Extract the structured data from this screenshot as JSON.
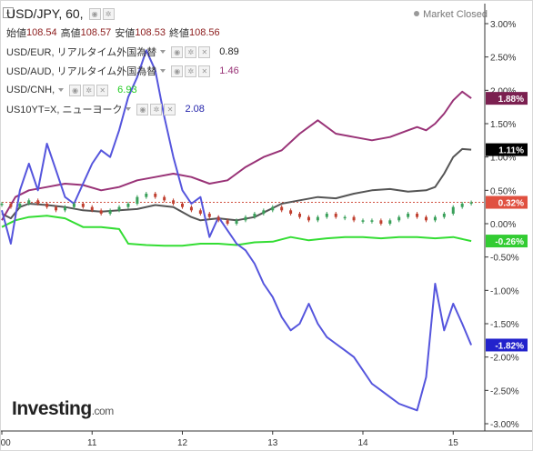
{
  "header": {
    "title": "USD/JPY, 60,",
    "market_status": "Market Closed",
    "ohlc": [
      {
        "label": "始値",
        "value": "108.54"
      },
      {
        "label": "高値",
        "value": "108.57"
      },
      {
        "label": "安値",
        "value": "108.53"
      },
      {
        "label": "終値",
        "value": "108.56"
      }
    ]
  },
  "legend": [
    {
      "label": "USD/EUR, リアルタイム外国為替",
      "value": "0.89",
      "color": "#222222"
    },
    {
      "label": "USD/AUD, リアルタイム外国為替",
      "value": "1.46",
      "color": "#993377"
    },
    {
      "label": "USD/CNH,",
      "value": "6.93",
      "color": "#33cc33"
    },
    {
      "label": "US10YT=X, ニューヨーク",
      "value": "2.08",
      "color": "#2222aa"
    }
  ],
  "logo": {
    "main": "Investing",
    "suffix": ".com"
  },
  "chart_data": {
    "type": "line",
    "title": "USD/JPY, 60,",
    "x_tick_labels": [
      "4:00",
      "11",
      "12",
      "13",
      "14",
      "15"
    ],
    "y_tick_labels": [
      "3.00%",
      "2.50%",
      "2.00%",
      "1.50%",
      "1.00%",
      "0.50%",
      "0.00%",
      "-0.50%",
      "-1.00%",
      "-1.50%",
      "-2.00%",
      "-2.50%",
      "-3.00%"
    ],
    "ylim": [
      -3.0,
      3.0
    ],
    "xlim": [
      10.0,
      15.35
    ],
    "y_axis_side": "right",
    "grid": false,
    "series": [
      {
        "name": "USD/EUR",
        "color": "#555555",
        "last_label": "1.11%",
        "label_bg": "#000000",
        "x": [
          10.0,
          10.1,
          10.2,
          10.3,
          10.5,
          10.7,
          10.9,
          11.1,
          11.3,
          11.5,
          11.7,
          11.9,
          12.1,
          12.2,
          12.4,
          12.6,
          12.8,
          12.95,
          13.1,
          13.3,
          13.5,
          13.7,
          13.9,
          14.1,
          14.3,
          14.5,
          14.7,
          14.8,
          14.9,
          15.0,
          15.1,
          15.2
        ],
        "y": [
          0.15,
          0.08,
          0.25,
          0.3,
          0.28,
          0.25,
          0.2,
          0.18,
          0.2,
          0.22,
          0.28,
          0.25,
          0.1,
          0.05,
          0.08,
          0.05,
          0.1,
          0.2,
          0.3,
          0.35,
          0.4,
          0.38,
          0.45,
          0.5,
          0.52,
          0.48,
          0.5,
          0.55,
          0.75,
          1.0,
          1.12,
          1.11
        ]
      },
      {
        "name": "USD/AUD",
        "color": "#993377",
        "last_label": "1.88%",
        "label_bg": "#7b2050",
        "x": [
          10.0,
          10.15,
          10.3,
          10.5,
          10.7,
          10.9,
          11.1,
          11.3,
          11.5,
          11.7,
          11.9,
          12.1,
          12.3,
          12.5,
          12.7,
          12.9,
          13.1,
          13.3,
          13.5,
          13.7,
          13.9,
          14.1,
          14.3,
          14.5,
          14.6,
          14.7,
          14.8,
          14.9,
          15.0,
          15.1,
          15.2
        ],
        "y": [
          0.05,
          0.4,
          0.5,
          0.55,
          0.6,
          0.58,
          0.5,
          0.55,
          0.65,
          0.7,
          0.75,
          0.7,
          0.6,
          0.65,
          0.85,
          1.0,
          1.1,
          1.35,
          1.55,
          1.35,
          1.3,
          1.25,
          1.3,
          1.4,
          1.45,
          1.4,
          1.5,
          1.65,
          1.85,
          1.98,
          1.88
        ]
      },
      {
        "name": "USD/CNH",
        "color": "#33dd33",
        "last_label": "-0.26%",
        "label_bg": "#33cc33",
        "x": [
          10.0,
          10.15,
          10.3,
          10.5,
          10.7,
          10.9,
          11.1,
          11.3,
          11.4,
          11.6,
          11.8,
          12.0,
          12.2,
          12.4,
          12.6,
          12.8,
          13.0,
          13.2,
          13.4,
          13.6,
          13.8,
          14.0,
          14.2,
          14.4,
          14.6,
          14.8,
          15.0,
          15.2
        ],
        "y": [
          -0.05,
          0.05,
          0.1,
          0.12,
          0.08,
          -0.05,
          -0.05,
          -0.08,
          -0.3,
          -0.32,
          -0.33,
          -0.33,
          -0.3,
          -0.3,
          -0.32,
          -0.28,
          -0.27,
          -0.2,
          -0.25,
          -0.22,
          -0.2,
          -0.2,
          -0.22,
          -0.2,
          -0.2,
          -0.22,
          -0.2,
          -0.26
        ]
      },
      {
        "name": "US10YT=X",
        "color": "#5555dd",
        "last_label": "-1.82%",
        "label_bg": "#2222cc",
        "x": [
          10.0,
          10.1,
          10.2,
          10.3,
          10.4,
          10.5,
          10.6,
          10.7,
          10.8,
          10.9,
          11.0,
          11.1,
          11.2,
          11.3,
          11.4,
          11.5,
          11.6,
          11.7,
          11.8,
          11.9,
          12.0,
          12.1,
          12.2,
          12.3,
          12.4,
          12.5,
          12.6,
          12.7,
          12.8,
          12.9,
          13.0,
          13.1,
          13.2,
          13.3,
          13.4,
          13.5,
          13.6,
          13.7,
          13.8,
          13.9,
          14.0,
          14.1,
          14.2,
          14.3,
          14.4,
          14.5,
          14.6,
          14.7,
          14.8,
          14.9,
          15.0,
          15.1,
          15.2
        ],
        "y": [
          0.2,
          -0.3,
          0.5,
          0.9,
          0.5,
          1.2,
          0.8,
          0.4,
          0.3,
          0.6,
          0.9,
          1.1,
          1.0,
          1.4,
          1.9,
          2.2,
          2.6,
          2.3,
          1.6,
          1.0,
          0.5,
          0.3,
          0.4,
          -0.2,
          0.1,
          -0.1,
          -0.3,
          -0.4,
          -0.6,
          -0.9,
          -1.1,
          -1.4,
          -1.6,
          -1.5,
          -1.2,
          -1.5,
          -1.7,
          -1.8,
          -1.9,
          -2.0,
          -2.2,
          -2.4,
          -2.5,
          -2.6,
          -2.7,
          -2.75,
          -2.8,
          -2.3,
          -0.9,
          -1.6,
          -1.2,
          -1.5,
          -1.82
        ]
      }
    ],
    "reference": {
      "name": "USD/JPY",
      "type": "candlestick",
      "color_up": "#3aa05a",
      "color_down": "#c04030",
      "last_label": "0.32%",
      "label_bg": "#e05040",
      "x": [
        10.0,
        10.1,
        10.2,
        10.3,
        10.4,
        10.5,
        10.6,
        10.7,
        10.8,
        10.9,
        11.0,
        11.1,
        11.2,
        11.3,
        11.4,
        11.5,
        11.6,
        11.7,
        11.8,
        11.9,
        12.0,
        12.1,
        12.2,
        12.3,
        12.4,
        12.5,
        12.6,
        12.7,
        12.8,
        12.9,
        13.0,
        13.1,
        13.2,
        13.3,
        13.4,
        13.5,
        13.6,
        13.7,
        13.8,
        13.9,
        14.0,
        14.1,
        14.2,
        14.3,
        14.4,
        14.5,
        14.6,
        14.7,
        14.8,
        14.9,
        15.0,
        15.1,
        15.2
      ],
      "y": [
        0.3,
        0.25,
        0.3,
        0.35,
        0.3,
        0.25,
        0.2,
        0.25,
        0.3,
        0.25,
        0.2,
        0.15,
        0.2,
        0.25,
        0.3,
        0.4,
        0.45,
        0.4,
        0.35,
        0.3,
        0.25,
        0.2,
        0.15,
        0.1,
        0.05,
        0.0,
        0.05,
        0.1,
        0.15,
        0.2,
        0.25,
        0.2,
        0.15,
        0.1,
        0.05,
        0.1,
        0.15,
        0.1,
        0.1,
        0.05,
        0.05,
        0.05,
        0.0,
        0.05,
        0.1,
        0.15,
        0.1,
        0.05,
        0.1,
        0.15,
        0.25,
        0.3,
        0.32
      ]
    }
  }
}
